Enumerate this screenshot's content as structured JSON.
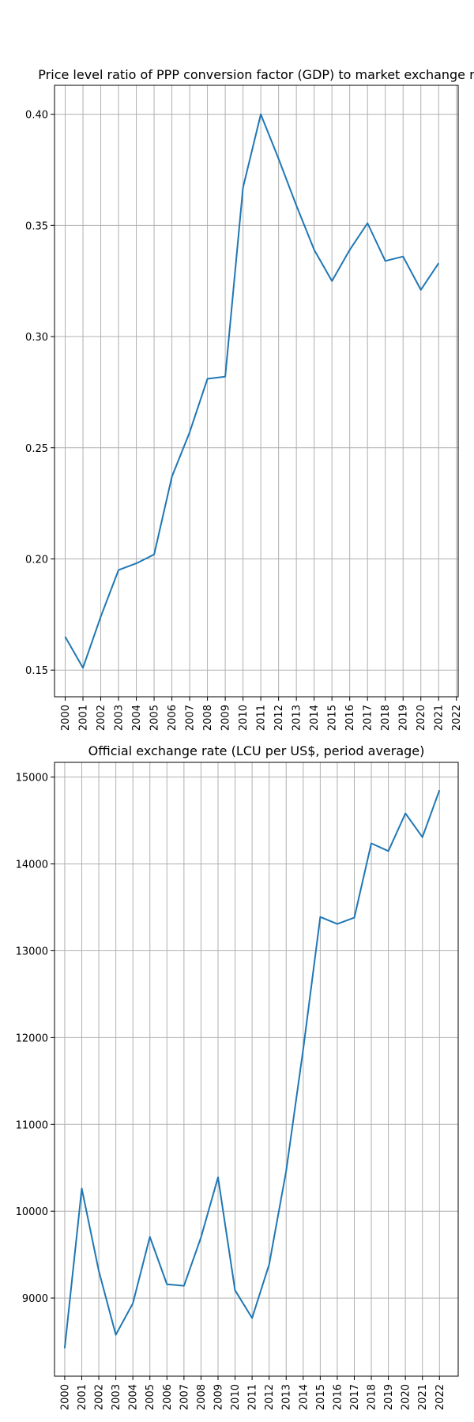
{
  "chart_data": [
    {
      "type": "line",
      "title": "Price level ratio of PPP conversion factor (GDP) to market exchange r",
      "xlabel": "",
      "ylabel": "",
      "grid": true,
      "x_ticks": [
        "2000",
        "2001",
        "2002",
        "2003",
        "2004",
        "2005",
        "2006",
        "2007",
        "2008",
        "2009",
        "2010",
        "2011",
        "2012",
        "2013",
        "2014",
        "2015",
        "2016",
        "2017",
        "2018",
        "2019",
        "2020",
        "2021",
        "2022"
      ],
      "y_ticks": [
        "0.15",
        "0.20",
        "0.25",
        "0.30",
        "0.35",
        "0.40"
      ],
      "y_tick_values": [
        0.15,
        0.2,
        0.25,
        0.3,
        0.35,
        0.4
      ],
      "xlim": [
        1999.4,
        2022.1
      ],
      "ylim": [
        0.138,
        0.413
      ],
      "series": [
        {
          "color": "#1f77b4",
          "x": [
            2000,
            2001,
            2002,
            2003,
            2004,
            2005,
            2006,
            2007,
            2008,
            2009,
            2010,
            2011,
            2012,
            2013,
            2014,
            2015,
            2016,
            2017,
            2018,
            2019,
            2020,
            2021
          ],
          "y": [
            0.165,
            0.151,
            0.174,
            0.195,
            0.198,
            0.202,
            0.237,
            0.257,
            0.281,
            0.282,
            0.367,
            0.4,
            0.38,
            0.359,
            0.339,
            0.325,
            0.339,
            0.351,
            0.334,
            0.336,
            0.321,
            0.333
          ]
        }
      ]
    },
    {
      "type": "line",
      "title": "Official exchange rate (LCU per US$, period average)",
      "xlabel": "",
      "ylabel": "",
      "grid": true,
      "x_ticks": [
        "2000",
        "2001",
        "2002",
        "2003",
        "2004",
        "2005",
        "2006",
        "2007",
        "2008",
        "2009",
        "2010",
        "2011",
        "2012",
        "2013",
        "2014",
        "2015",
        "2016",
        "2017",
        "2018",
        "2019",
        "2020",
        "2021",
        "2022"
      ],
      "y_ticks": [
        "9000",
        "10000",
        "11000",
        "12000",
        "13000",
        "14000",
        "15000"
      ],
      "y_tick_values": [
        9000,
        10000,
        11000,
        12000,
        13000,
        14000,
        15000
      ],
      "xlim": [
        1999.4,
        2023.1
      ],
      "ylim": [
        8100,
        15170
      ],
      "series": [
        {
          "color": "#1f77b4",
          "x": [
            2000,
            2001,
            2002,
            2003,
            2004,
            2005,
            2006,
            2007,
            2008,
            2009,
            2010,
            2011,
            2012,
            2013,
            2014,
            2015,
            2016,
            2017,
            2018,
            2019,
            2020,
            2021,
            2022
          ],
          "y": [
            8422,
            10261,
            9311,
            8577,
            8939,
            9705,
            9159,
            9141,
            9699,
            10390,
            9090,
            8770,
            9387,
            10461,
            11865,
            13389,
            13308,
            13381,
            14237,
            14148,
            14582,
            14308,
            14850
          ]
        }
      ]
    }
  ]
}
